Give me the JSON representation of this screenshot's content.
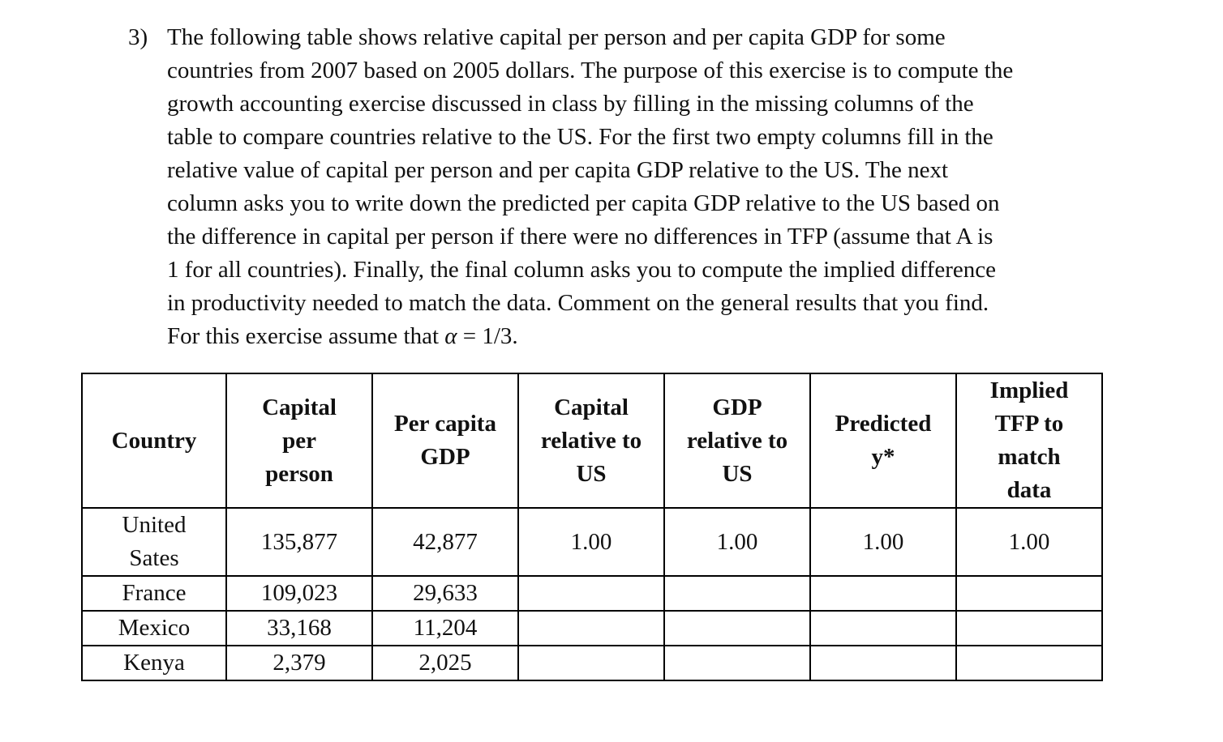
{
  "question": {
    "number": "3)",
    "lines": [
      "The following table shows relative capital per person and per capita GDP for some",
      "countries from 2007 based on 2005 dollars. The purpose of this exercise is to compute the",
      "growth accounting exercise discussed in class by filling in the missing columns of the",
      "table to compare countries relative to the US. For the first two empty columns fill in the",
      "relative value of capital per person and per capita GDP relative to the US. The next",
      "column asks you to write down the predicted per capita GDP relative to the US based on",
      "the difference in capital per person if there were no differences in TFP (assume that A is",
      "1 for all countries). Finally, the final column asks you to compute the implied difference",
      "in productivity needed to match the data. Comment on the general results that you find."
    ],
    "last_line_prefix": "For this exercise assume that ",
    "alpha_symbol": "α",
    "last_line_suffix": " = 1/3."
  },
  "table": {
    "headers": [
      [
        "Country"
      ],
      [
        "Capital",
        "per",
        "person"
      ],
      [
        "Per capita",
        "GDP"
      ],
      [
        "Capital",
        "relative to",
        "US"
      ],
      [
        "GDP",
        "relative to",
        "US"
      ],
      [
        "Predicted",
        "y*"
      ],
      [
        "Implied",
        "TFP to",
        "match",
        "data"
      ]
    ],
    "rows": [
      {
        "country_lines": [
          "United",
          "Sates"
        ],
        "capital_per_person": "135,877",
        "per_capita_gdp": "42,877",
        "capital_relative": "1.00",
        "gdp_relative": "1.00",
        "predicted_y": "1.00",
        "implied_tfp": "1.00"
      },
      {
        "country_lines": [
          "France"
        ],
        "capital_per_person": "109,023",
        "per_capita_gdp": "29,633",
        "capital_relative": "",
        "gdp_relative": "",
        "predicted_y": "",
        "implied_tfp": ""
      },
      {
        "country_lines": [
          "Mexico"
        ],
        "capital_per_person": "33,168",
        "per_capita_gdp": "11,204",
        "capital_relative": "",
        "gdp_relative": "",
        "predicted_y": "",
        "implied_tfp": ""
      },
      {
        "country_lines": [
          "Kenya"
        ],
        "capital_per_person": "2,379",
        "per_capita_gdp": "2,025",
        "capital_relative": "",
        "gdp_relative": "",
        "predicted_y": "",
        "implied_tfp": ""
      }
    ]
  }
}
